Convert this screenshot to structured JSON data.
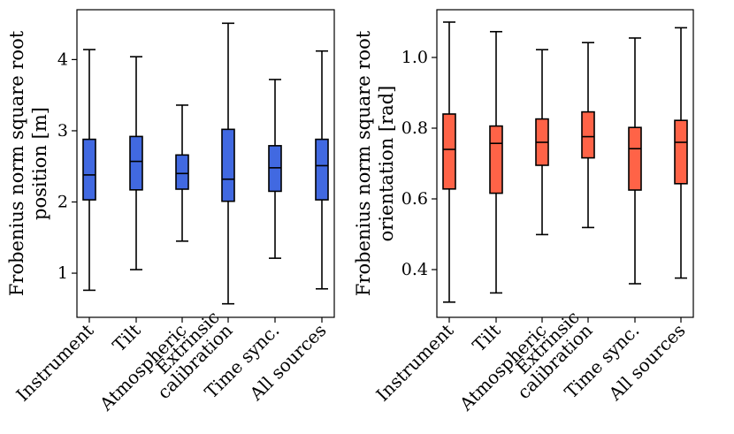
{
  "chart_data": [
    {
      "type": "boxplot",
      "title": "",
      "xlabel": "",
      "ylabel_lines": [
        "Frobenius norm square root",
        "position [m]"
      ],
      "ylim": [
        0.38,
        4.7
      ],
      "yticks": [
        1,
        2,
        3,
        4
      ],
      "ytick_labels": [
        "1",
        "2",
        "3",
        "4"
      ],
      "color": "#4169e1",
      "categories": [
        {
          "lines": [
            "Instrument"
          ],
          "min": 0.76,
          "q1": 2.03,
          "median": 2.38,
          "q3": 2.88,
          "max": 4.14
        },
        {
          "lines": [
            "Tilt"
          ],
          "min": 1.05,
          "q1": 2.17,
          "median": 2.57,
          "q3": 2.92,
          "max": 4.04
        },
        {
          "lines": [
            "Atmospheric"
          ],
          "min": 1.45,
          "q1": 2.18,
          "median": 2.4,
          "q3": 2.66,
          "max": 3.36
        },
        {
          "lines": [
            "Extrinsic",
            "calibration"
          ],
          "min": 0.57,
          "q1": 2.01,
          "median": 2.32,
          "q3": 3.02,
          "max": 4.51
        },
        {
          "lines": [
            "Time sync."
          ],
          "min": 1.21,
          "q1": 2.15,
          "median": 2.48,
          "q3": 2.79,
          "max": 3.72
        },
        {
          "lines": [
            "All sources"
          ],
          "min": 0.78,
          "q1": 2.03,
          "median": 2.51,
          "q3": 2.88,
          "max": 4.12
        }
      ]
    },
    {
      "type": "boxplot",
      "title": "",
      "xlabel": "",
      "ylabel_lines": [
        "Frobenius norm square root",
        "orientation [rad]"
      ],
      "ylim": [
        0.265,
        1.135
      ],
      "yticks": [
        0.4,
        0.6,
        0.8,
        1.0
      ],
      "ytick_labels": [
        "0.4",
        "0.6",
        "0.8",
        "1.0"
      ],
      "color": "#ff6347",
      "categories": [
        {
          "lines": [
            "Instrument"
          ],
          "min": 0.308,
          "q1": 0.628,
          "median": 0.74,
          "q3": 0.84,
          "max": 1.1
        },
        {
          "lines": [
            "Tilt"
          ],
          "min": 0.334,
          "q1": 0.616,
          "median": 0.757,
          "q3": 0.806,
          "max": 1.073
        },
        {
          "lines": [
            "Atmospheric"
          ],
          "min": 0.499,
          "q1": 0.695,
          "median": 0.76,
          "q3": 0.826,
          "max": 1.022
        },
        {
          "lines": [
            "Extrinsic",
            "calibration"
          ],
          "min": 0.519,
          "q1": 0.716,
          "median": 0.776,
          "q3": 0.846,
          "max": 1.042
        },
        {
          "lines": [
            "Time sync."
          ],
          "min": 0.36,
          "q1": 0.625,
          "median": 0.742,
          "q3": 0.802,
          "max": 1.055
        },
        {
          "lines": [
            "All sources"
          ],
          "min": 0.376,
          "q1": 0.643,
          "median": 0.76,
          "q3": 0.822,
          "max": 1.084
        }
      ]
    }
  ]
}
